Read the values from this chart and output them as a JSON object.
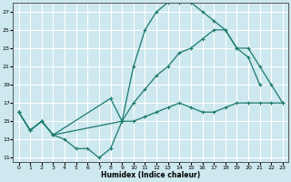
{
  "xlabel": "Humidex (Indice chaleur)",
  "bg_color": "#cde8ee",
  "grid_color": "#ffffff",
  "line_color": "#1a7a6e",
  "xlim": [
    -0.5,
    23.5
  ],
  "ylim": [
    10.5,
    28
  ],
  "xticks": [
    0,
    1,
    2,
    3,
    4,
    5,
    6,
    7,
    8,
    9,
    10,
    11,
    12,
    13,
    14,
    15,
    16,
    17,
    18,
    19,
    20,
    21,
    22,
    23
  ],
  "yticks": [
    11,
    13,
    15,
    17,
    19,
    21,
    23,
    25,
    27
  ],
  "line1_x": [
    0,
    1,
    2,
    3,
    4,
    5,
    6,
    7,
    8,
    9,
    10,
    11,
    12,
    13,
    14,
    15,
    16,
    17,
    18,
    19,
    20,
    21,
    22,
    23
  ],
  "line1_y": [
    16,
    14,
    15,
    13.5,
    13,
    12,
    12,
    11,
    12,
    15,
    15,
    15.5,
    16,
    16.5,
    17,
    16.5,
    16,
    16,
    16.5,
    17,
    17,
    17,
    17,
    17
  ],
  "line2_x": [
    0,
    1,
    2,
    3,
    9,
    10,
    11,
    12,
    13,
    14,
    15,
    16,
    17,
    18,
    19,
    20,
    21,
    22,
    23
  ],
  "line2_y": [
    16,
    14,
    15,
    13.5,
    15,
    17,
    18.5,
    20,
    21,
    22.5,
    23,
    24,
    25,
    25,
    23,
    23,
    21,
    19,
    17
  ],
  "line3_x": [
    0,
    1,
    2,
    3,
    8,
    9,
    10,
    11,
    12,
    13,
    14,
    15,
    16,
    17,
    18,
    19,
    20,
    21
  ],
  "line3_y": [
    16,
    14,
    15,
    13.5,
    17.5,
    15,
    21,
    25,
    27,
    28,
    28,
    28,
    27,
    26,
    25,
    23,
    22,
    19
  ]
}
